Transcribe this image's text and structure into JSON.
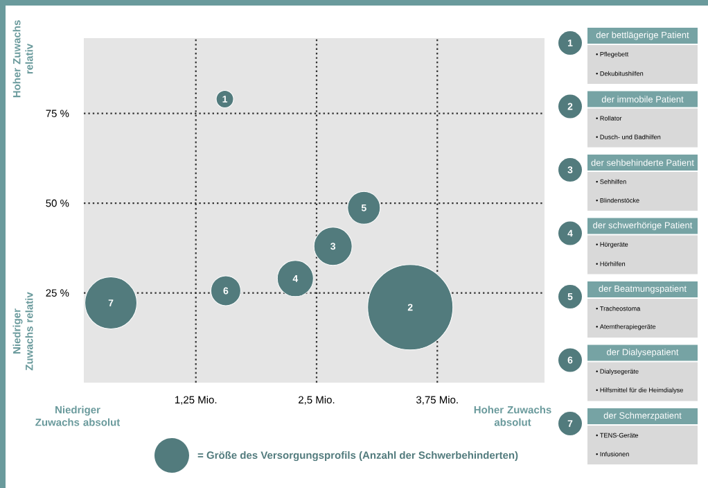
{
  "chart_data": {
    "type": "bubble",
    "xlim": [
      0.09,
      4.86
    ],
    "ylim": [
      0,
      96
    ],
    "xticks": [
      {
        "value": 1.25,
        "label": "1,25 Mio."
      },
      {
        "value": 2.5,
        "label": "2,5 Mio."
      },
      {
        "value": 3.75,
        "label": "3,75 Mio."
      }
    ],
    "yticks": [
      {
        "value": 25,
        "label": "25 %"
      },
      {
        "value": 50,
        "label": "50 %"
      },
      {
        "value": 75,
        "label": "75 %"
      }
    ],
    "grid": true,
    "series": [
      {
        "color": "#527b7d",
        "x": [
          1.55,
          3.47,
          2.67,
          2.28,
          2.99,
          1.56,
          0.37
        ],
        "values": [
          79,
          21,
          38,
          29,
          48.7,
          25.6,
          22.2
        ],
        "sizes": [
          0.041,
          1,
          0.2,
          0.179,
          0.146,
          0.122,
          0.372
        ]
      }
    ],
    "annotations": [
      {
        "text": "1",
        "x": 1.55,
        "y": 79
      },
      {
        "text": "2",
        "x": 3.47,
        "y": 21
      },
      {
        "text": "3",
        "x": 2.67,
        "y": 38
      },
      {
        "text": "4",
        "x": 2.28,
        "y": 29
      },
      {
        "text": "5",
        "x": 2.99,
        "y": 48.7
      },
      {
        "text": "6",
        "x": 1.56,
        "y": 25.6
      },
      {
        "text": "7",
        "x": 0.37,
        "y": 22.2
      },
      "Niedriger Zuwachs absolut",
      "Hoher Zuwachs absolut",
      "Hoher Zuwachs relativ",
      "Niedriger Zuwachs relativ",
      "= Größe des Versorgungsprofils (Anzahl der Schwerbehinderten)",
      "1",
      "der bettlägerige Patient",
      "• Pflegebett",
      "• Dekubitushilfen",
      "2",
      "der immobile Patient",
      "• Rollator",
      "• Dusch- und Badhilfen",
      "3",
      "der sehbehinderte Patient",
      "• Sehhilfen",
      "• Blindenstöcke",
      "4",
      "der schwerhörige Patient",
      "• Hörgeräte",
      "• Hörhilfen",
      "5",
      "der Beatmungspatient",
      "• Tracheostoma",
      "• Atemtherapiegeräte",
      "6",
      "der Dialysepatient",
      "• Dialysegeräte",
      "• Hilfsmittel für die Heimdialyse",
      "7",
      "der Schmerzpatient",
      "• TENS-Geräte",
      "• Infusionen"
    ]
  }
}
